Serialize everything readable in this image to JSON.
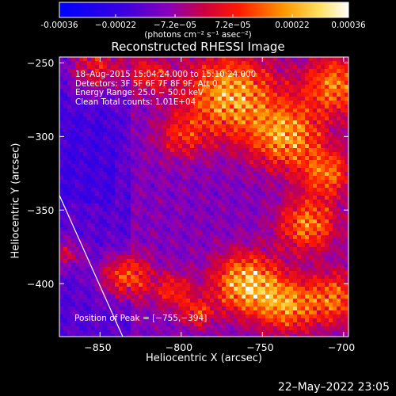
{
  "chart_data": {
    "type": "heatmap",
    "title": "Reconstructed RHESSI Image",
    "xlabel": "Heliocentric X (arcsec)",
    "ylabel": "Heliocentric Y (arcsec)",
    "xlim": [
      -875,
      -697
    ],
    "ylim": [
      -436,
      -246
    ],
    "x_ticks": [
      -850,
      -800,
      -750,
      -700
    ],
    "x_tick_labels": [
      "−850",
      "−800",
      "−750",
      "−700"
    ],
    "y_ticks": [
      -400,
      -350,
      -300,
      -250
    ],
    "y_tick_labels": [
      "−400",
      "−350",
      "−300",
      "−250"
    ],
    "colorbar": {
      "range": [
        -0.00036,
        0.00036
      ],
      "ticks": [
        -0.00036,
        -0.00022,
        -7.2e-05,
        7.2e-05,
        0.00022,
        0.00036
      ],
      "tick_labels": [
        "-0.00036",
        "−0.00022",
        "−7.2e−05",
        "7.2e−05",
        "0.00022",
        "0.00036"
      ],
      "units": "(photons cm⁻² s⁻¹ asec⁻²)"
    },
    "annotations": [
      "18–Aug–2015 15:04:24.000 to 15:10:24.000",
      "Detectors: 3F 5F 6F 7F 8F 9F, Att 0",
      "Energy Range: 25.0 − 50.0 keV",
      "Clean     Total counts: 1.01E+04"
    ],
    "peak_label": "Position of Peak = [−755,−394]",
    "peak_position": [
      -755,
      -394
    ],
    "limb_line": [
      [
        -875,
        -340
      ],
      [
        -836,
        -436
      ]
    ],
    "grid": false,
    "colormap": "Blue-Red (IDL)"
  },
  "footer": "22–May–2022 23:05"
}
